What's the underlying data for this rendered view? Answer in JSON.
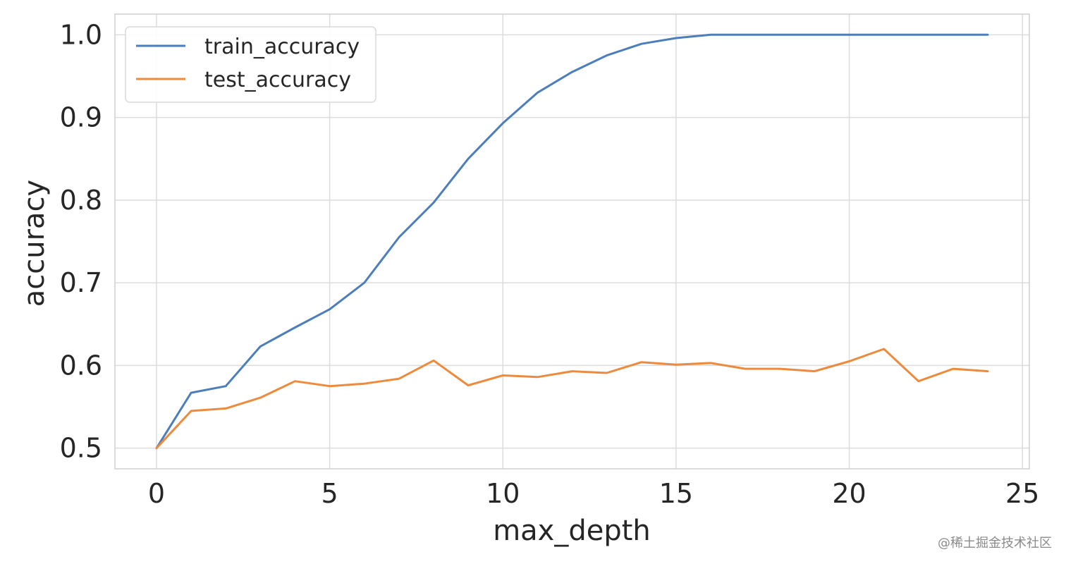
{
  "chart_data": {
    "type": "line",
    "title": "",
    "xlabel": "max_depth",
    "ylabel": "accuracy",
    "xlim": [
      -1.2,
      25.2
    ],
    "ylim": [
      0.475,
      1.025
    ],
    "xticks": [
      0,
      5,
      10,
      15,
      20,
      25
    ],
    "yticks": [
      0.5,
      0.6,
      0.7,
      0.8,
      0.9,
      1.0
    ],
    "xtick_labels": [
      "0",
      "5",
      "10",
      "15",
      "20",
      "25"
    ],
    "ytick_labels": [
      "0.5",
      "0.6",
      "0.7",
      "0.8",
      "0.9",
      "1.0"
    ],
    "grid": true,
    "legend_position": "top-left",
    "x": [
      0,
      1,
      2,
      3,
      4,
      5,
      6,
      7,
      8,
      9,
      10,
      11,
      12,
      13,
      14,
      15,
      16,
      17,
      18,
      19,
      20,
      21,
      22,
      23,
      24
    ],
    "series": [
      {
        "name": "train_accuracy",
        "color": "#4c7ebb",
        "values": [
          0.5,
          0.567,
          0.575,
          0.623,
          0.646,
          0.668,
          0.7,
          0.755,
          0.797,
          0.85,
          0.893,
          0.93,
          0.955,
          0.975,
          0.989,
          0.996,
          1.0,
          1.0,
          1.0,
          1.0,
          1.0,
          1.0,
          1.0,
          1.0,
          1.0
        ]
      },
      {
        "name": "test_accuracy",
        "color": "#ee8a3c",
        "values": [
          0.5,
          0.545,
          0.548,
          0.561,
          0.581,
          0.575,
          0.578,
          0.584,
          0.606,
          0.576,
          0.588,
          0.586,
          0.593,
          0.591,
          0.604,
          0.601,
          0.603,
          0.596,
          0.596,
          0.593,
          0.605,
          0.62,
          0.581,
          0.596,
          0.593
        ]
      }
    ]
  },
  "watermark": "@稀土掘金技术社区"
}
